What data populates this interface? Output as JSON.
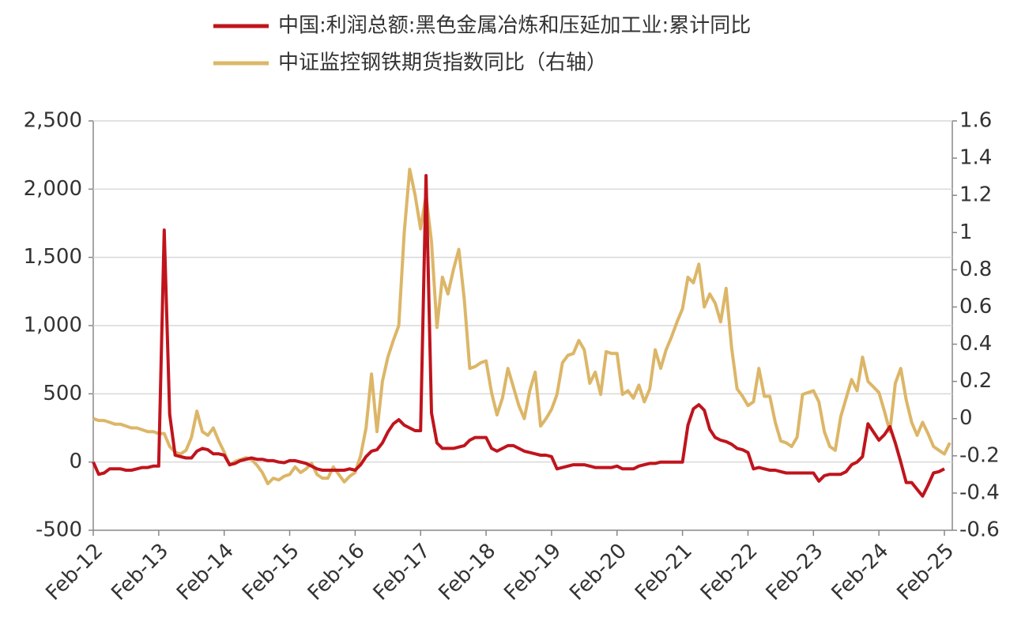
{
  "chart_data": {
    "type": "line",
    "categories": [
      "Feb-12",
      null,
      null,
      null,
      null,
      null,
      null,
      null,
      null,
      null,
      null,
      null,
      "Feb-13",
      null,
      null,
      null,
      null,
      null,
      null,
      null,
      null,
      null,
      null,
      null,
      "Feb-14",
      null,
      null,
      null,
      null,
      null,
      null,
      null,
      null,
      null,
      null,
      null,
      "Feb-15",
      null,
      null,
      null,
      null,
      null,
      null,
      null,
      null,
      null,
      null,
      null,
      "Feb-16",
      null,
      null,
      null,
      null,
      null,
      null,
      null,
      null,
      null,
      null,
      null,
      "Feb-17",
      null,
      null,
      null,
      null,
      null,
      null,
      null,
      null,
      null,
      null,
      null,
      "Feb-18",
      null,
      null,
      null,
      null,
      null,
      null,
      null,
      null,
      null,
      null,
      null,
      "Feb-19",
      null,
      null,
      null,
      null,
      null,
      null,
      null,
      null,
      null,
      null,
      null,
      "Feb-20",
      null,
      null,
      null,
      null,
      null,
      null,
      null,
      null,
      null,
      null,
      null,
      "Feb-21",
      null,
      null,
      null,
      null,
      null,
      null,
      null,
      null,
      null,
      null,
      null,
      "Feb-22",
      null,
      null,
      null,
      null,
      null,
      null,
      null,
      null,
      null,
      null,
      null,
      "Feb-23",
      null,
      null,
      null,
      null,
      null,
      null,
      null,
      null,
      null,
      null,
      null,
      "Feb-24",
      null,
      null,
      null,
      null,
      null,
      null,
      null,
      null,
      null,
      null,
      null,
      "Feb-25",
      null
    ],
    "series": [
      {
        "name": "中国:利润总额:黑色金属冶炼和压延加工业:累计同比",
        "color": "#c0141d",
        "axis": "y",
        "values": [
          0,
          -90,
          -80,
          -50,
          -50,
          -50,
          -60,
          -60,
          -50,
          -40,
          -40,
          -30,
          -30,
          1700,
          350,
          50,
          40,
          30,
          30,
          80,
          100,
          90,
          60,
          60,
          50,
          -20,
          -10,
          10,
          20,
          30,
          20,
          20,
          10,
          10,
          0,
          -5,
          10,
          10,
          0,
          -10,
          -30,
          -50,
          -60,
          -60,
          -60,
          -60,
          -60,
          -50,
          -60,
          -20,
          40,
          80,
          90,
          140,
          220,
          280,
          310,
          270,
          250,
          230,
          230,
          2100,
          360,
          140,
          100,
          100,
          100,
          110,
          120,
          160,
          180,
          180,
          180,
          100,
          80,
          100,
          120,
          120,
          100,
          80,
          70,
          60,
          50,
          50,
          40,
          -50,
          -40,
          -30,
          -20,
          -20,
          -20,
          -30,
          -40,
          -40,
          -40,
          -40,
          -30,
          -50,
          -50,
          -50,
          -30,
          -20,
          -10,
          -10,
          0,
          0,
          0,
          0,
          0,
          270,
          390,
          420,
          380,
          240,
          180,
          160,
          150,
          130,
          100,
          90,
          70,
          -50,
          -40,
          -50,
          -60,
          -60,
          -70,
          -80,
          -80,
          -80,
          -80,
          -80,
          -80,
          -140,
          -100,
          -90,
          -90,
          -90,
          -70,
          -20,
          0,
          40,
          280,
          220,
          160,
          200,
          260,
          140,
          0,
          -150,
          -150,
          -200,
          -250,
          -170,
          -80,
          -70,
          -50,
          null
        ]
      },
      {
        "name": "中证监控钢铁期货指数同比（右轴）",
        "color": "#dcb668",
        "axis": "y2",
        "values": [
          0,
          -0.01,
          -0.01,
          -0.02,
          -0.03,
          -0.03,
          -0.04,
          -0.05,
          -0.05,
          -0.06,
          -0.07,
          -0.07,
          -0.08,
          -0.08,
          -0.15,
          -0.18,
          -0.19,
          -0.17,
          -0.1,
          0.04,
          -0.07,
          -0.09,
          -0.05,
          -0.12,
          -0.18,
          -0.25,
          -0.23,
          -0.22,
          -0.21,
          -0.22,
          -0.25,
          -0.29,
          -0.35,
          -0.32,
          -0.33,
          -0.31,
          -0.3,
          -0.26,
          -0.29,
          -0.27,
          -0.24,
          -0.3,
          -0.32,
          -0.32,
          -0.26,
          -0.3,
          -0.34,
          -0.31,
          -0.29,
          -0.2,
          -0.05,
          0.24,
          -0.07,
          0.2,
          0.33,
          0.42,
          0.5,
          1.0,
          1.34,
          1.2,
          1.02,
          1.2,
          0.95,
          0.49,
          0.76,
          0.67,
          0.8,
          0.91,
          0.64,
          0.27,
          0.28,
          0.3,
          0.31,
          0.14,
          0.02,
          0.11,
          0.27,
          0.17,
          0.07,
          0,
          0.15,
          0.25,
          -0.04,
          0,
          0.05,
          0.13,
          0.3,
          0.34,
          0.35,
          0.42,
          0.37,
          0.19,
          0.25,
          0.13,
          0.36,
          0.35,
          0.35,
          0.13,
          0.15,
          0.11,
          0.18,
          0.09,
          0.16,
          0.37,
          0.27,
          0.37,
          0.44,
          0.52,
          0.59,
          0.76,
          0.73,
          0.83,
          0.6,
          0.67,
          0.62,
          0.52,
          0.7,
          0.38,
          0.16,
          0.12,
          0.07,
          0.09,
          0.27,
          0.12,
          0.12,
          -0.02,
          -0.12,
          -0.13,
          -0.15,
          -0.1,
          0.13,
          0.14,
          0.15,
          0.09,
          -0.07,
          -0.15,
          -0.17,
          0.01,
          0.11,
          0.21,
          0.15,
          0.33,
          0.2,
          0.17,
          0.14,
          0.04,
          -0.07,
          0.19,
          0.27,
          0.1,
          -0.02,
          -0.09,
          -0.02,
          -0.08,
          -0.15,
          -0.17,
          -0.19,
          -0.13
        ]
      }
    ],
    "ylim": [
      -500,
      2500
    ],
    "yticks": [
      {
        "value": -500,
        "label": "-500"
      },
      0,
      500,
      {
        "value": 1000,
        "label": "1,000"
      },
      {
        "value": 1500,
        "label": "1,500"
      },
      {
        "value": 2000,
        "label": "2,000"
      },
      {
        "value": 2500,
        "label": "2,500"
      }
    ],
    "y2lim": [
      -0.6,
      1.6
    ],
    "y2ticks": [
      -0.6,
      -0.4,
      -0.2,
      0,
      0.2,
      0.4,
      0.6,
      0.8,
      1,
      1.2,
      1.4,
      1.6
    ],
    "grid": true,
    "legend": "top"
  }
}
